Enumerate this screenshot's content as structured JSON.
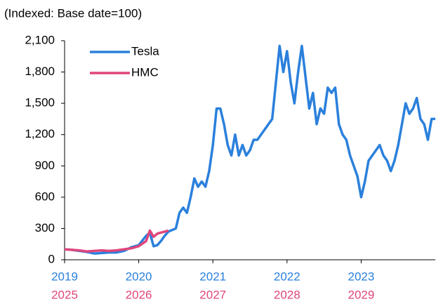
{
  "chart_data": {
    "type": "line",
    "ylabel": "(Indexed: Base date=100)",
    "xlim": [
      2019,
      2024
    ],
    "xticks": [
      2019,
      2020,
      2021,
      2022,
      2023
    ],
    "x2lim": [
      2025,
      2030
    ],
    "x2ticks": [
      2025,
      2026,
      2027,
      2028,
      2029
    ],
    "ylim": [
      0,
      2100
    ],
    "yticks": [
      0,
      300,
      600,
      900,
      {
        "value": 1200,
        "label": "1,200"
      },
      {
        "value": 1500,
        "label": "1,500"
      },
      {
        "value": 1800,
        "label": "1,800"
      },
      {
        "value": 2100,
        "label": "2,100"
      }
    ],
    "grid": false,
    "legend": "upper left",
    "series": [
      {
        "name": "Tesla",
        "color": "#2b80dc",
        "axis": "x",
        "x": [
          2019.0,
          2019.1,
          2019.2,
          2019.3,
          2019.4,
          2019.5,
          2019.6,
          2019.7,
          2019.8,
          2019.9,
          2020.0,
          2020.1,
          2020.15,
          2020.2,
          2020.25,
          2020.3,
          2020.35,
          2020.4,
          2020.5,
          2020.55,
          2020.6,
          2020.65,
          2020.7,
          2020.75,
          2020.8,
          2020.85,
          2020.9,
          2020.95,
          2021.0,
          2021.05,
          2021.1,
          2021.15,
          2021.2,
          2021.25,
          2021.3,
          2021.35,
          2021.4,
          2021.45,
          2021.5,
          2021.55,
          2021.6,
          2021.65,
          2021.7,
          2021.75,
          2021.8,
          2021.85,
          2021.9,
          2021.95,
          2022.0,
          2022.05,
          2022.1,
          2022.15,
          2022.2,
          2022.25,
          2022.3,
          2022.35,
          2022.4,
          2022.45,
          2022.5,
          2022.55,
          2022.6,
          2022.65,
          2022.7,
          2022.75,
          2022.8,
          2022.85,
          2022.9,
          2022.95,
          2023.0,
          2023.05,
          2023.1,
          2023.15,
          2023.2,
          2023.25,
          2023.3,
          2023.35,
          2023.4,
          2023.45,
          2023.5,
          2023.55,
          2023.6,
          2023.65,
          2023.7,
          2023.75,
          2023.8,
          2023.85,
          2023.9,
          2023.95,
          2024.0
        ],
        "values": [
          100,
          95,
          85,
          75,
          60,
          65,
          70,
          70,
          85,
          120,
          140,
          230,
          260,
          130,
          140,
          180,
          230,
          270,
          300,
          450,
          500,
          450,
          600,
          780,
          700,
          750,
          700,
          850,
          1100,
          1450,
          1450,
          1300,
          1100,
          1000,
          1200,
          1000,
          1100,
          1000,
          1050,
          1150,
          1150,
          1200,
          1250,
          1300,
          1350,
          1700,
          2050,
          1800,
          2000,
          1700,
          1500,
          1800,
          2050,
          1750,
          1450,
          1600,
          1300,
          1450,
          1400,
          1650,
          1600,
          1650,
          1300,
          1200,
          1150,
          1000,
          900,
          800,
          600,
          750,
          950,
          1000,
          1050,
          1100,
          1000,
          950,
          850,
          950,
          1100,
          1300,
          1500,
          1400,
          1450,
          1550,
          1350,
          1300,
          1150,
          1350,
          1350
        ]
      },
      {
        "name": "HMC",
        "color": "#e0457b",
        "axis": "x2",
        "x": [
          2025.0,
          2025.1,
          2025.2,
          2025.3,
          2025.4,
          2025.5,
          2025.6,
          2025.7,
          2025.8,
          2025.9,
          2026.0,
          2026.1,
          2026.15,
          2026.2,
          2026.25,
          2026.3,
          2026.35,
          2026.4
        ],
        "values": [
          100,
          95,
          90,
          80,
          85,
          90,
          85,
          90,
          100,
          110,
          130,
          180,
          280,
          220,
          250,
          260,
          270,
          280
        ]
      }
    ]
  }
}
